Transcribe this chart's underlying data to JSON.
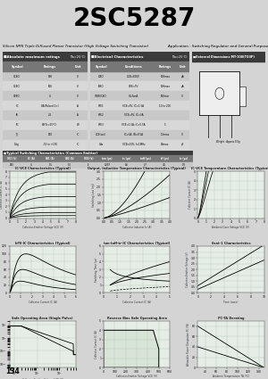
{
  "title": "2SC5287",
  "bg_color": "#d4d4d4",
  "title_bg": "#cccccc",
  "subtitle": "Silicon NPN Triple Diffused Planar Transistor (High Voltage Switching Transistor)",
  "application": "Application : Switching Regulator and General Purpose",
  "page_number": "134",
  "abs_max_header": "Absolute maximum ratings",
  "abs_max_suffix": "(Ta=25°C)",
  "abs_max_cols": [
    "Symbol",
    "Ratings",
    "Unit"
  ],
  "abs_max_rows": [
    [
      "VCBO",
      "800",
      "V"
    ],
    [
      "VCEO",
      "500",
      "V"
    ],
    [
      "VEBO",
      "4",
      "V"
    ],
    [
      "IC",
      "8A(Pulsed 2×)",
      "A"
    ],
    [
      "IB",
      "2.5",
      "A"
    ],
    [
      "PC",
      "80(Tc=25°C)",
      "W"
    ],
    [
      "Tj",
      "150",
      "°C"
    ],
    [
      "Tstg",
      "-55 to +150",
      "°C"
    ]
  ],
  "elec_header": "Electrical Characteristics",
  "elec_suffix": "(Ta=25°C)",
  "elec_cols": [
    "Symbol",
    "Conditions",
    "Ratings",
    "Unit"
  ],
  "elec_rows": [
    [
      "ICBO",
      "VCB=800V",
      "100max",
      "μA"
    ],
    [
      "IEBO",
      "VEB=7V",
      "100max",
      "μA"
    ],
    [
      "V(BR)CEO",
      "IC=5mA",
      "500min",
      "V"
    ],
    [
      "hFE1",
      "VCE=5V, IC=1.5A",
      "10 to 200",
      ""
    ],
    [
      "hFE2",
      "VCE=5V, IC=3A",
      "",
      ""
    ],
    [
      "hFE3",
      "VCE=1.5A, IC=5.5A",
      "5",
      ""
    ],
    [
      "VCE(sat)",
      "IC=5A, IB=0.5A",
      "1.5max",
      "V"
    ],
    [
      "Cob",
      "VCB=10V, f=1MHz",
      "80max",
      "pF"
    ]
  ],
  "ext_header": "External Dimensions MT-100(TO3P)",
  "sw_header": "Typical Switching Characteristics (Common Emitter)",
  "sw_cols": [
    "VCC\n(V)",
    "IC\n(A)",
    "IB1\n(A)",
    "IB2\n(A)",
    "VCE\n(V)",
    "ton\n(μs)",
    "ts\n(μs)",
    "toff\n(μs)",
    "tf\n(μs)",
    "tr\n(μs)"
  ],
  "sw_row": [
    "250",
    "4",
    "1.5",
    "1.0",
    "-5",
    "0.207",
    "8.6",
    "0.7",
    "4.5",
    "0.9"
  ],
  "graph_titles": [
    "IC-VCE Characteristics (Typical)",
    "Output, Inductive Temperature Characteristics (Typical)",
    "IC-VCE Temperature Characteristics (Typical)",
    "hFE-IC Characteristics (Typical)",
    "ton·toff·tr-IC Characteristics (Typical)",
    "0sat-1 Characteristics",
    "Safe Operating Area (Single Pulse)",
    "Reverse Bias Safe Operating Area",
    "PC-TA Derating"
  ],
  "plot_bg": "#e6ede6",
  "grid_color": "#aabfaa"
}
